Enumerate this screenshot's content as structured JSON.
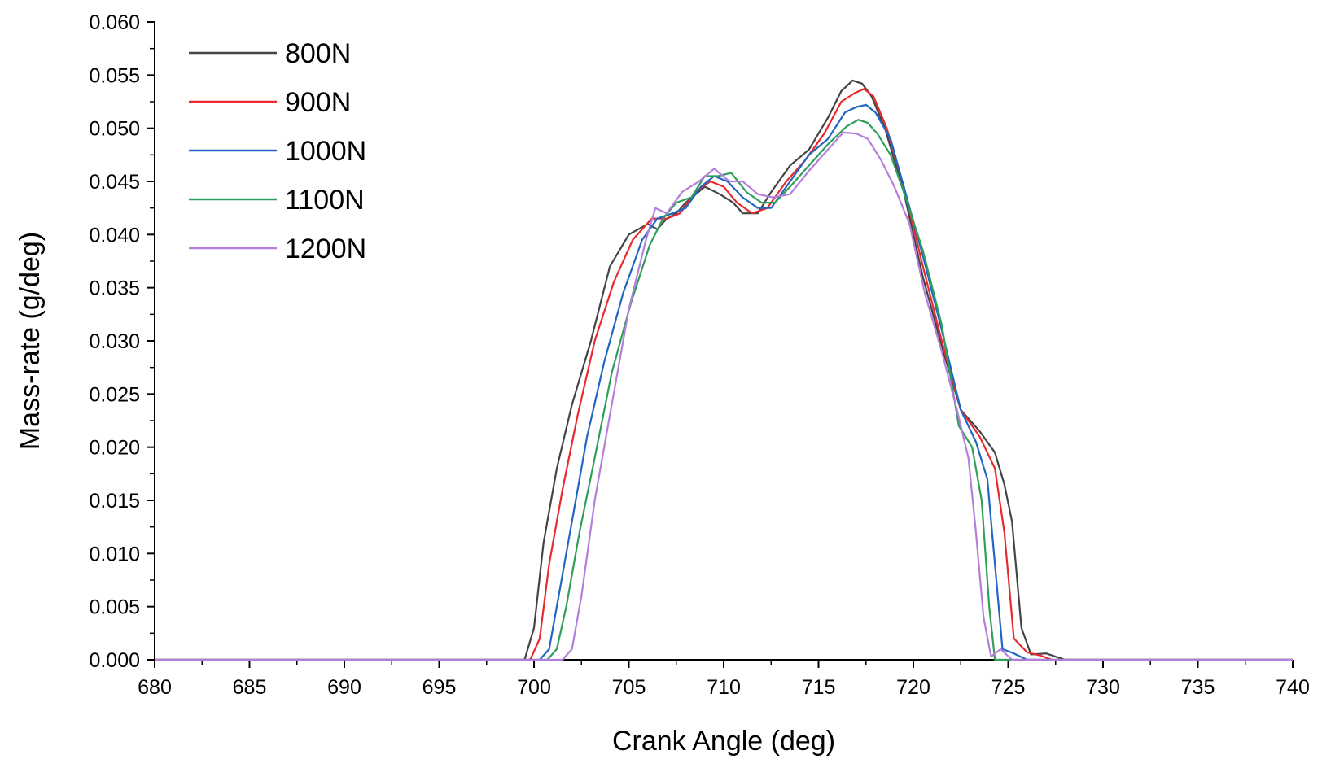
{
  "chart_data": {
    "type": "line",
    "title": "",
    "xlabel": "Crank Angle (deg)",
    "ylabel": "Mass-rate (g/deg)",
    "xlim": [
      680,
      740
    ],
    "ylim": [
      0.0,
      0.06
    ],
    "grid": false,
    "legend_position": "top-left",
    "x_ticks": [
      680,
      685,
      690,
      695,
      700,
      705,
      710,
      715,
      720,
      725,
      730,
      735,
      740
    ],
    "x_tick_labels": [
      "680",
      "685",
      "690",
      "695",
      "700",
      "705",
      "710",
      "715",
      "720",
      "725",
      "730",
      "735",
      "740"
    ],
    "y_ticks": [
      0.0,
      0.005,
      0.01,
      0.015,
      0.02,
      0.025,
      0.03,
      0.035,
      0.04,
      0.045,
      0.05,
      0.055,
      0.06
    ],
    "y_tick_labels": [
      "0.000",
      "0.005",
      "0.010",
      "0.015",
      "0.020",
      "0.025",
      "0.030",
      "0.035",
      "0.040",
      "0.045",
      "0.050",
      "0.055",
      "0.060"
    ],
    "series": [
      {
        "name": "800N",
        "color": "#444444",
        "x": [
          680,
          699.5,
          700.0,
          700.5,
          701.2,
          702.0,
          703.0,
          704.0,
          705.0,
          706.0,
          706.5,
          707.0,
          707.5,
          708.0,
          709.0,
          709.8,
          710.5,
          711.0,
          711.8,
          712.5,
          713.5,
          714.5,
          715.5,
          716.2,
          716.8,
          717.3,
          717.8,
          718.5,
          719.5,
          720.5,
          721.5,
          722.5,
          723.5,
          724.3,
          724.8,
          725.2,
          725.7,
          726.2,
          727.0,
          728.0,
          740
        ],
        "y": [
          0.0,
          0.0,
          0.003,
          0.011,
          0.018,
          0.024,
          0.03,
          0.037,
          0.04,
          0.041,
          0.0405,
          0.0415,
          0.042,
          0.043,
          0.0445,
          0.0438,
          0.043,
          0.042,
          0.042,
          0.044,
          0.0465,
          0.048,
          0.051,
          0.0535,
          0.0545,
          0.0542,
          0.053,
          0.05,
          0.044,
          0.036,
          0.0295,
          0.0235,
          0.0215,
          0.0195,
          0.0165,
          0.013,
          0.003,
          0.0005,
          0.0006,
          0.0,
          0.0
        ]
      },
      {
        "name": "900N",
        "color": "#e8292e",
        "x": [
          680,
          699.8,
          700.3,
          700.8,
          701.5,
          702.3,
          703.2,
          704.2,
          705.2,
          706.2,
          707.0,
          707.7,
          708.5,
          709.3,
          710.0,
          710.7,
          711.5,
          712.3,
          713.3,
          714.3,
          715.3,
          716.2,
          716.9,
          717.4,
          717.9,
          718.6,
          719.5,
          720.5,
          721.5,
          722.5,
          723.5,
          724.3,
          724.8,
          725.3,
          726.0,
          726.7,
          727.3,
          740
        ],
        "y": [
          0.0,
          0.0,
          0.002,
          0.009,
          0.016,
          0.023,
          0.03,
          0.0355,
          0.0395,
          0.0415,
          0.0415,
          0.042,
          0.044,
          0.045,
          0.0445,
          0.043,
          0.042,
          0.0425,
          0.045,
          0.047,
          0.0495,
          0.0525,
          0.0533,
          0.0537,
          0.053,
          0.05,
          0.0445,
          0.037,
          0.03,
          0.0235,
          0.021,
          0.018,
          0.012,
          0.002,
          0.0007,
          0.0004,
          0.0,
          0.0
        ]
      },
      {
        "name": "1000N",
        "color": "#2166c4",
        "x": [
          680,
          700.3,
          700.8,
          701.3,
          702.0,
          702.8,
          703.7,
          704.7,
          705.7,
          706.5,
          707.3,
          708.0,
          708.8,
          709.5,
          710.2,
          711.0,
          711.8,
          712.5,
          713.5,
          714.5,
          715.5,
          716.4,
          717.0,
          717.5,
          718.0,
          718.8,
          719.5,
          720.5,
          721.5,
          722.5,
          723.3,
          723.9,
          724.3,
          724.7,
          725.3,
          726.0,
          740
        ],
        "y": [
          0.0,
          0.0,
          0.001,
          0.006,
          0.013,
          0.021,
          0.028,
          0.0345,
          0.0395,
          0.0415,
          0.042,
          0.0425,
          0.0445,
          0.0455,
          0.045,
          0.0435,
          0.0425,
          0.0425,
          0.045,
          0.0475,
          0.049,
          0.0515,
          0.052,
          0.0522,
          0.0515,
          0.049,
          0.0445,
          0.038,
          0.031,
          0.0235,
          0.0205,
          0.017,
          0.009,
          0.001,
          0.0006,
          0.0,
          0.0
        ]
      },
      {
        "name": "1100N",
        "color": "#2e9e5b",
        "x": [
          680,
          700.7,
          701.2,
          701.7,
          702.4,
          703.2,
          704.1,
          705.1,
          706.1,
          706.8,
          707.5,
          708.3,
          709.0,
          709.7,
          710.4,
          711.2,
          712.0,
          712.7,
          713.5,
          714.5,
          715.5,
          716.5,
          717.1,
          717.6,
          718.1,
          718.8,
          719.5,
          720.5,
          721.5,
          722.4,
          723.1,
          723.6,
          724.0,
          724.3,
          725.0,
          740
        ],
        "y": [
          0.0,
          0.0,
          0.001,
          0.005,
          0.012,
          0.019,
          0.027,
          0.0335,
          0.039,
          0.0415,
          0.043,
          0.0435,
          0.0455,
          0.0455,
          0.0458,
          0.044,
          0.043,
          0.043,
          0.0445,
          0.0465,
          0.0485,
          0.0502,
          0.0508,
          0.0505,
          0.0495,
          0.0475,
          0.044,
          0.0385,
          0.0315,
          0.022,
          0.02,
          0.015,
          0.005,
          0.0,
          0.0,
          0.0
        ]
      },
      {
        "name": "1200N",
        "color": "#b57edc",
        "x": [
          680,
          701.5,
          702.0,
          702.5,
          703.2,
          704.1,
          705.0,
          705.9,
          706.4,
          707.0,
          707.8,
          708.7,
          709.5,
          710.3,
          711.0,
          711.8,
          712.6,
          713.5,
          714.5,
          715.5,
          716.3,
          717.0,
          717.6,
          718.3,
          719.0,
          719.8,
          720.6,
          721.5,
          722.3,
          722.9,
          723.3,
          723.7,
          724.1,
          724.6,
          725.2,
          740
        ],
        "y": [
          0.0,
          0.0,
          0.001,
          0.006,
          0.015,
          0.024,
          0.033,
          0.0395,
          0.0425,
          0.042,
          0.044,
          0.045,
          0.0462,
          0.045,
          0.045,
          0.0438,
          0.0435,
          0.0438,
          0.046,
          0.048,
          0.0496,
          0.0495,
          0.049,
          0.047,
          0.0445,
          0.041,
          0.0345,
          0.029,
          0.0235,
          0.019,
          0.012,
          0.004,
          0.0003,
          0.001,
          0.0,
          0.0
        ]
      }
    ]
  }
}
